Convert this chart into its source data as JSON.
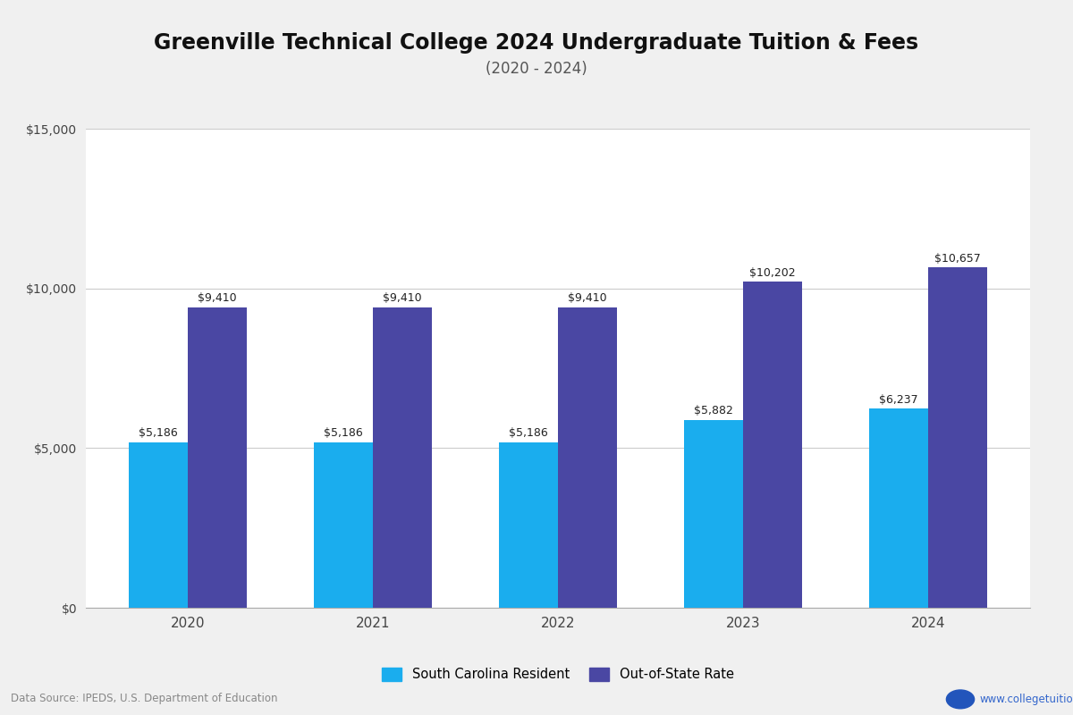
{
  "title": "Greenville Technical College 2024 Undergraduate Tuition & Fees",
  "subtitle": "(2020 - 2024)",
  "years": [
    2020,
    2021,
    2022,
    2023,
    2024
  ],
  "resident_values": [
    5186,
    5186,
    5186,
    5882,
    6237
  ],
  "outofstate_values": [
    9410,
    9410,
    9410,
    10202,
    10657
  ],
  "resident_color": "#1AADEE",
  "outofstate_color": "#4A47A3",
  "resident_label": "South Carolina Resident",
  "outofstate_label": "Out-of-State Rate",
  "ylim": [
    0,
    15000
  ],
  "yticks": [
    0,
    5000,
    10000,
    15000
  ],
  "ytick_labels": [
    "$0",
    "$5,000",
    "$10,000",
    "$15,000"
  ],
  "background_color": "#f0f0f0",
  "plot_background": "#ffffff",
  "data_source": "Data Source: IPEDS, U.S. Department of Education",
  "website": "www.collegetuitioncompare.com",
  "title_fontsize": 17,
  "subtitle_fontsize": 12,
  "bar_width": 0.32,
  "annotation_fontsize": 9,
  "grid_color": "#cccccc",
  "axis_color": "#aaaaaa"
}
